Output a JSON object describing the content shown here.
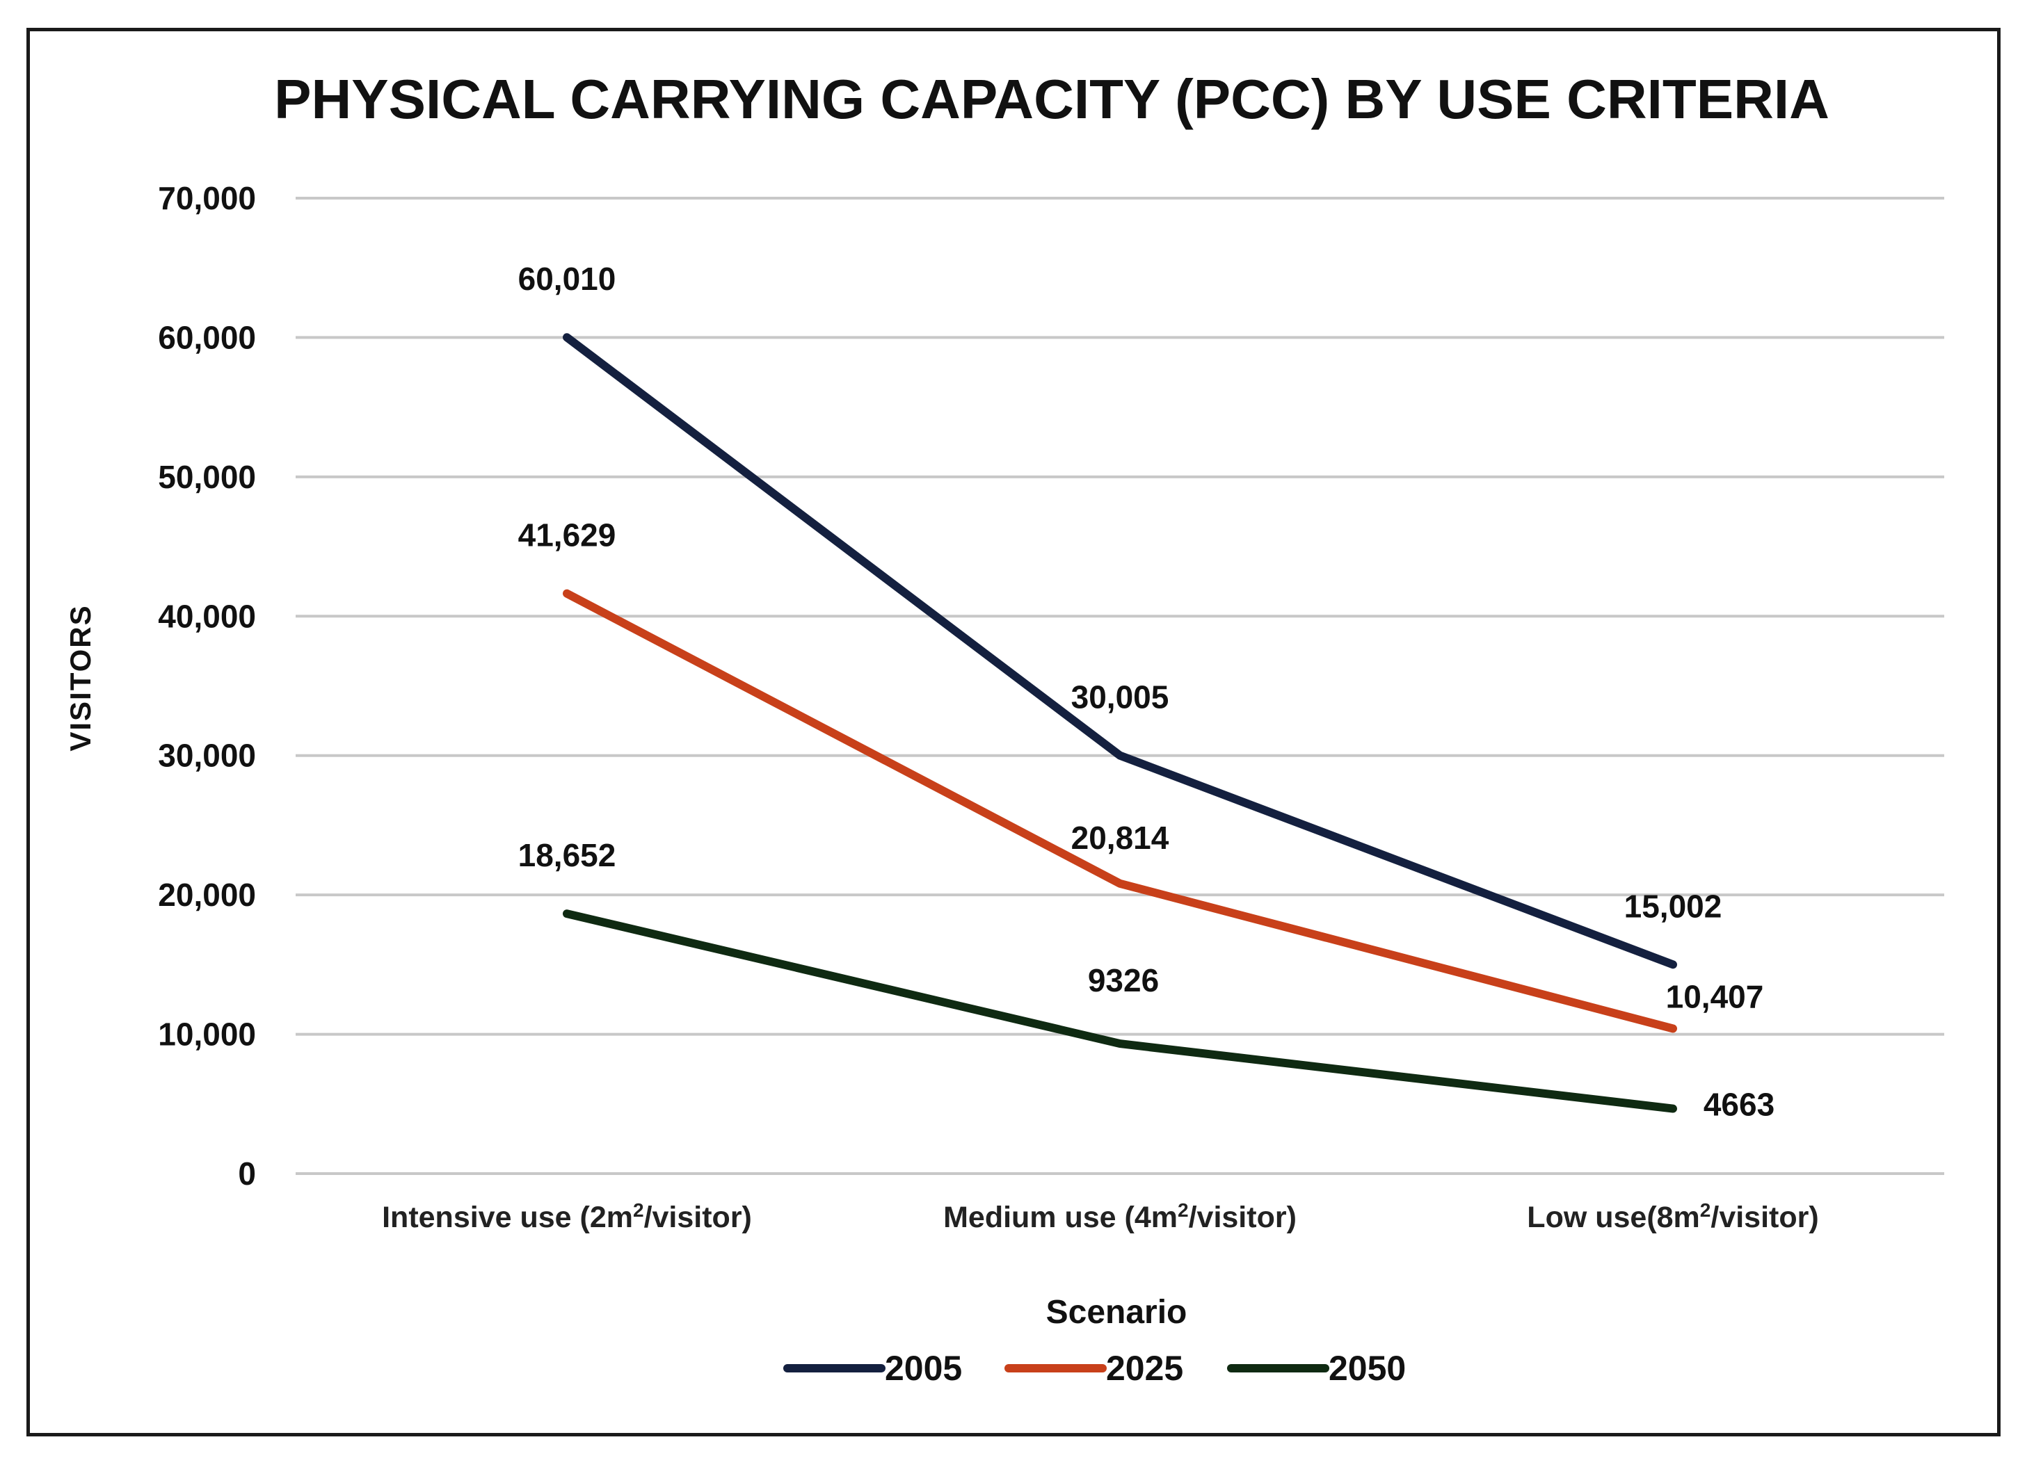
{
  "chart_data": {
    "type": "line",
    "title": "PHYSICAL CARRYING CAPACITY (PCC) BY USE CRITERIA",
    "ylabel": "VISITORS",
    "xlabel": "",
    "categories": [
      "Intensive use (2m²/visitor)",
      "Medium use (4m²/visitor)",
      "Low use(8m²/visitor)"
    ],
    "ylim": [
      0,
      70000
    ],
    "yticks": [
      0,
      10000,
      20000,
      30000,
      40000,
      50000,
      60000,
      70000
    ],
    "ytick_labels": [
      "0",
      "10,000",
      "20,000",
      "30,000",
      "40,000",
      "50,000",
      "60,000",
      "70,000"
    ],
    "grid": true,
    "legend_title": "Scenario",
    "legend_position": "bottom",
    "series": [
      {
        "name": "2005",
        "color": "#14203f",
        "values": [
          60010,
          30005,
          15002
        ],
        "labels": [
          "60,010",
          "30,005",
          "15,002"
        ]
      },
      {
        "name": "2025",
        "color": "#c8401a",
        "values": [
          41629,
          20814,
          10407
        ],
        "labels": [
          "41,629",
          "20,814",
          "10,407"
        ]
      },
      {
        "name": "2050",
        "color": "#0f2a12",
        "values": [
          18652,
          9326,
          4663
        ],
        "labels": [
          "18,652",
          "9326",
          "4663"
        ]
      }
    ]
  }
}
